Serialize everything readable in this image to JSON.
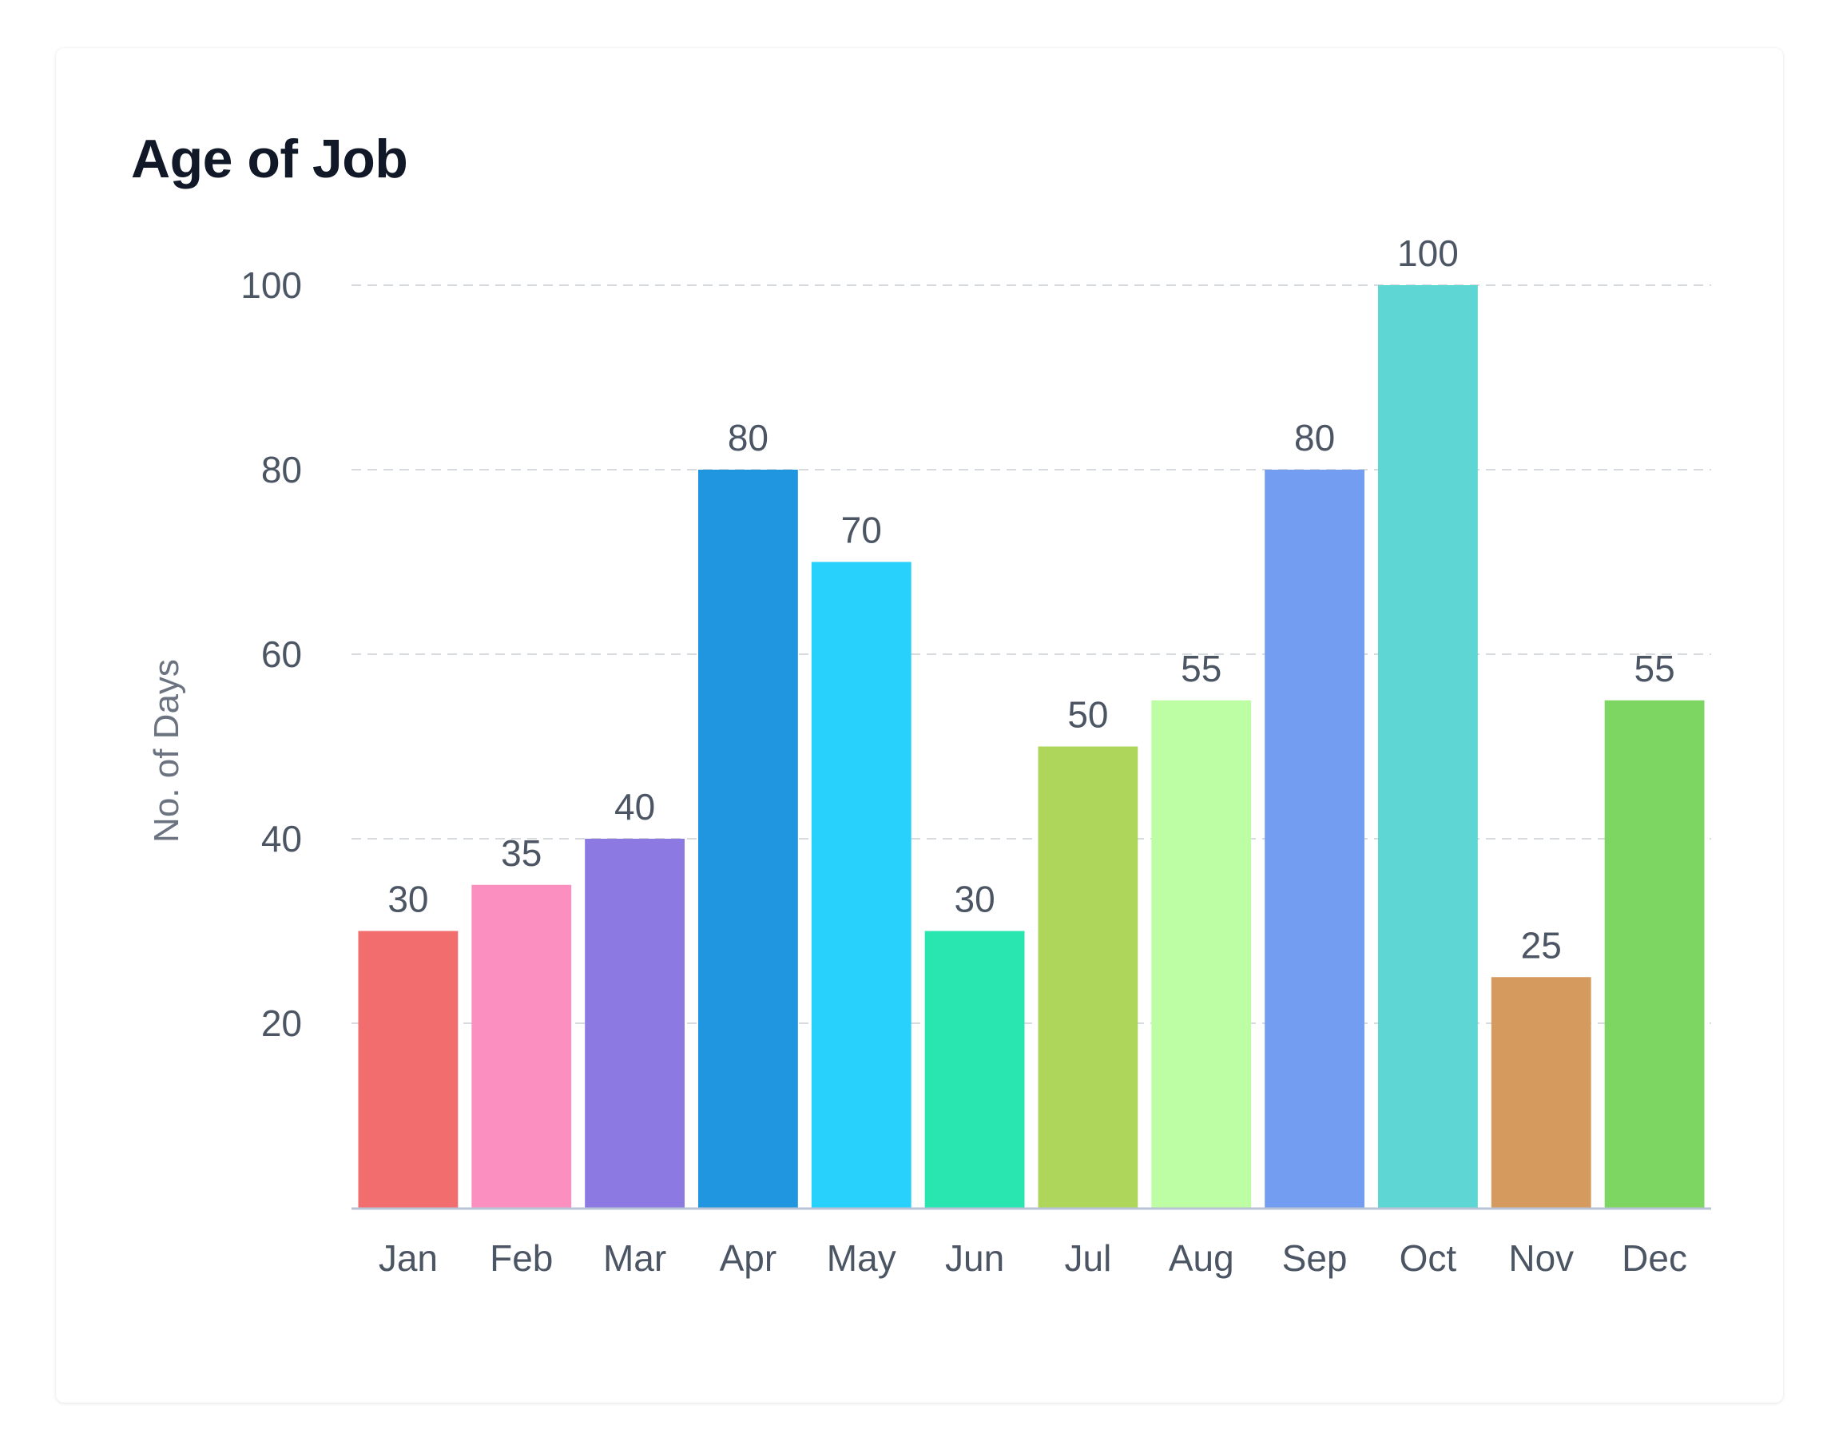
{
  "card": {
    "title": "Age of Job"
  },
  "chart_data": {
    "type": "bar",
    "title": "Age of Job",
    "xlabel": "",
    "ylabel": "No. of Days",
    "ylim": [
      0,
      100
    ],
    "yticks": [
      20,
      40,
      60,
      80,
      100
    ],
    "grid": true,
    "categories": [
      "Jan",
      "Feb",
      "Mar",
      "Apr",
      "May",
      "Jun",
      "Jul",
      "Aug",
      "Sep",
      "Oct",
      "Nov",
      "Dec"
    ],
    "values": [
      30,
      35,
      40,
      80,
      70,
      30,
      50,
      55,
      80,
      100,
      25,
      55
    ],
    "colors": [
      "#f26d6d",
      "#fb8fbf",
      "#8c79e2",
      "#2196e0",
      "#27d1fc",
      "#29e5b0",
      "#aed65b",
      "#bdfda3",
      "#739df0",
      "#5ed6d4",
      "#d59a5e",
      "#7ed662"
    ],
    "grid_color": "#d7dbe0",
    "axis_color": "#b9c3d6"
  }
}
